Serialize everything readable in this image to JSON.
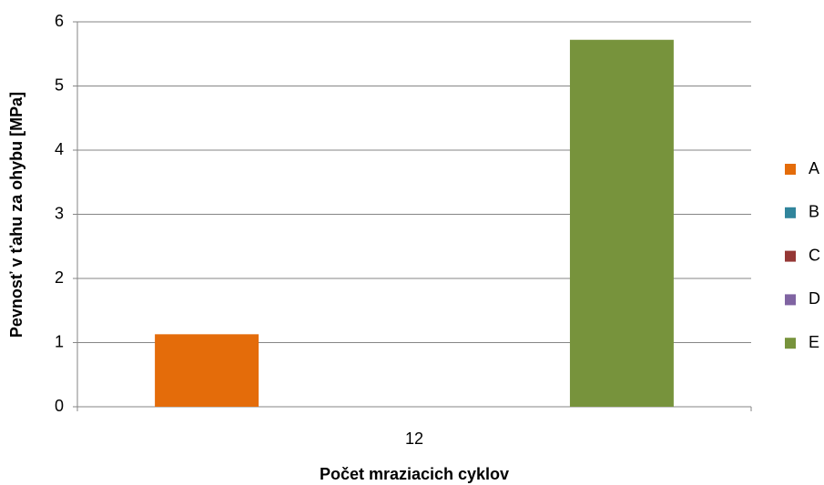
{
  "chart_data": {
    "type": "bar",
    "x_label": "Počet mraziacich cyklov",
    "y_label": "Pevnosť v ťahu za ohybu [MPa]",
    "categories": [
      "12"
    ],
    "series": [
      {
        "name": "A",
        "color": "#e46c0a",
        "values": [
          1.13
        ]
      },
      {
        "name": "B",
        "color": "#31859c",
        "values": [
          null
        ]
      },
      {
        "name": "C",
        "color": "#953735",
        "values": [
          null
        ]
      },
      {
        "name": "D",
        "color": "#8064a2",
        "values": [
          null
        ]
      },
      {
        "name": "E",
        "color": "#77933c",
        "values": [
          5.72
        ]
      }
    ],
    "ylim": [
      0,
      6
    ],
    "yticks": [
      0,
      1,
      2,
      3,
      4,
      5,
      6
    ],
    "grid": true,
    "legend": "right"
  }
}
